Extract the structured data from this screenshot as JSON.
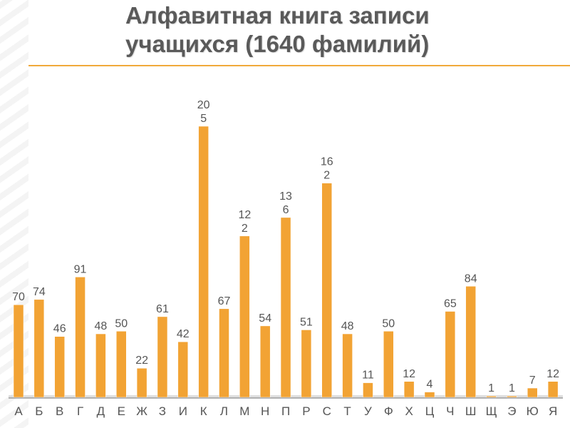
{
  "title": {
    "line1": "Алфавитная книга записи",
    "line2": "учащихся (1640 фамилий)"
  },
  "colors": {
    "bar": "#f2a334",
    "rule": "#f0a93a",
    "title": "#5a5a5a",
    "label": "#555555"
  },
  "chart_data": {
    "type": "bar",
    "title": "Алфавитная книга записи учащихся (1640 фамилий)",
    "xlabel": "",
    "ylabel": "",
    "categories": [
      "А",
      "Б",
      "В",
      "Г",
      "Д",
      "Е",
      "Ж",
      "З",
      "И",
      "К",
      "Л",
      "М",
      "Н",
      "П",
      "Р",
      "С",
      "Т",
      "У",
      "Ф",
      "Х",
      "Ц",
      "Ч",
      "Ш",
      "Щ",
      "Э",
      "Ю",
      "Я"
    ],
    "values": [
      70,
      74,
      46,
      91,
      48,
      50,
      22,
      61,
      42,
      205,
      67,
      122,
      54,
      136,
      51,
      162,
      48,
      11,
      50,
      12,
      4,
      65,
      84,
      1,
      1,
      7,
      12
    ],
    "value_labels": [
      [
        "70"
      ],
      [
        "74"
      ],
      [
        "46"
      ],
      [
        "91"
      ],
      [
        "48"
      ],
      [
        "50"
      ],
      [
        "22"
      ],
      [
        "61"
      ],
      [
        "42"
      ],
      [
        "20",
        "5"
      ],
      [
        "67"
      ],
      [
        "12",
        "2"
      ],
      [
        "54"
      ],
      [
        "13",
        "6"
      ],
      [
        "51"
      ],
      [
        "16",
        "2"
      ],
      [
        "48"
      ],
      [
        "11"
      ],
      [
        "50"
      ],
      [
        "12"
      ],
      [
        "4"
      ],
      [
        "65"
      ],
      [
        "84"
      ],
      [
        "1"
      ],
      [
        "1"
      ],
      [
        "7"
      ],
      [
        "12"
      ]
    ],
    "ylim": [
      0,
      205
    ],
    "grid": false,
    "legend": "none"
  }
}
